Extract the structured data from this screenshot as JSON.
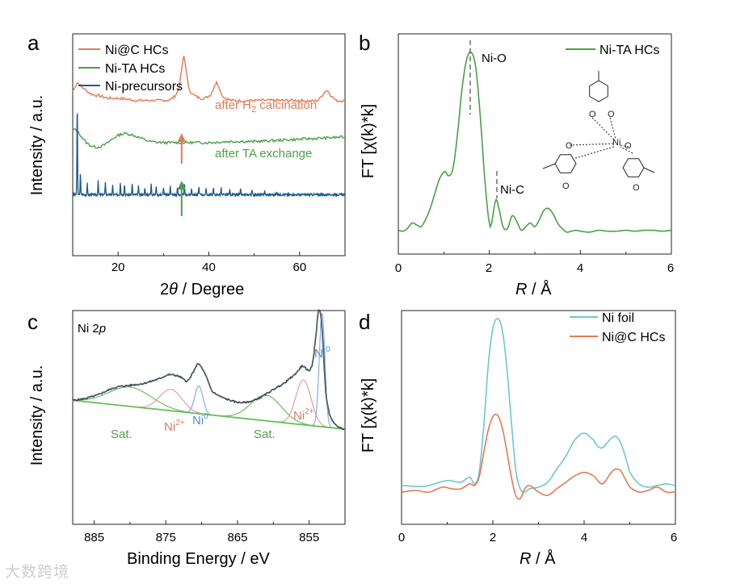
{
  "colors": {
    "nic": "#e07b55",
    "nita": "#4aa047",
    "nipre": "#1f5a8c",
    "foil": "#6cc7cf",
    "fit_black": "#222222",
    "fit_pink": "#e79aa0",
    "fit_blue": "#88aee0",
    "fit_green": "#6cbf5e",
    "sat_text": "#5a9a4a",
    "ni2_text": "#d97a66",
    "ni0_text": "#5b8fc9"
  },
  "chart_data": [
    {
      "panel": "a",
      "type": "line",
      "xlabel_pre": "2",
      "xlabel_theta": "θ",
      "xlabel_post": " / Degree",
      "ylabel": "Intensity / a.u.",
      "xlim": [
        10,
        70
      ],
      "xticks": [
        "20",
        "40",
        "60"
      ],
      "legend": [
        "Ni@C HCs",
        "Ni-TA HCs",
        "Ni-precursors"
      ],
      "annot_calc_pre": "after H",
      "annot_calc_sub": "2",
      "annot_calc_post": " calcination",
      "annot_ta": "after TA exchange",
      "series": [
        {
          "name": "Ni@C HCs",
          "x": [
            10,
            11,
            12,
            14,
            16,
            18,
            20,
            22,
            24,
            26,
            28,
            30,
            32,
            33.5,
            34.5,
            35.5,
            37,
            39,
            40.5,
            41.7,
            43,
            45,
            50,
            55,
            60,
            64,
            66,
            67,
            68,
            70
          ],
          "y": [
            0.74,
            0.78,
            0.76,
            0.73,
            0.72,
            0.71,
            0.71,
            0.705,
            0.7,
            0.7,
            0.7,
            0.7,
            0.71,
            0.76,
            0.9,
            0.76,
            0.72,
            0.71,
            0.73,
            0.78,
            0.72,
            0.7,
            0.7,
            0.7,
            0.7,
            0.7,
            0.745,
            0.72,
            0.7,
            0.7
          ]
        },
        {
          "name": "Ni-TA HCs",
          "x": [
            10,
            11,
            13,
            15,
            17,
            19,
            21,
            23,
            25,
            27,
            30,
            33,
            36,
            40,
            45,
            50,
            55,
            60,
            65,
            70
          ],
          "y": [
            0.57,
            0.56,
            0.51,
            0.49,
            0.5,
            0.53,
            0.55,
            0.545,
            0.53,
            0.515,
            0.51,
            0.51,
            0.51,
            0.51,
            0.515,
            0.515,
            0.52,
            0.525,
            0.53,
            0.535
          ]
        },
        {
          "name": "Ni-precursors",
          "peaks": [
            [
              11.0,
              0.44
            ],
            [
              11.7,
              0.1
            ],
            [
              13.2,
              0.05
            ],
            [
              15.6,
              0.07
            ],
            [
              17.2,
              0.06
            ],
            [
              18.8,
              0.045
            ],
            [
              20.5,
              0.06
            ],
            [
              21.4,
              0.05
            ],
            [
              23.1,
              0.05
            ],
            [
              24.5,
              0.04
            ],
            [
              25.9,
              0.035
            ],
            [
              27.3,
              0.055
            ],
            [
              28.4,
              0.04
            ],
            [
              30.0,
              0.035
            ],
            [
              31.5,
              0.045
            ],
            [
              33.1,
              0.035
            ],
            [
              34.6,
              0.05
            ],
            [
              36.2,
              0.03
            ],
            [
              37.8,
              0.04
            ],
            [
              39.4,
              0.03
            ],
            [
              41.0,
              0.035
            ],
            [
              42.7,
              0.03
            ],
            [
              44.6,
              0.025
            ],
            [
              47.0,
              0.025
            ],
            [
              49.5,
              0.02
            ],
            [
              52.3,
              0.02
            ],
            [
              55.0,
              0.015
            ]
          ],
          "baseline": 0.275
        }
      ]
    },
    {
      "panel": "b",
      "type": "line",
      "xlabel_r": "R",
      "xlabel_rest": " / Å",
      "ylabel": "FT [χ(k)*k]",
      "xlim": [
        0,
        6
      ],
      "xticks": [
        "0",
        "2",
        "4",
        "6"
      ],
      "legend": [
        "Ni-TA HCs"
      ],
      "annotations": [
        "Ni-O",
        "Ni-C"
      ],
      "mol_labels": [
        "O",
        "O",
        "O",
        "O",
        "O",
        "O",
        "Ni"
      ],
      "series": [
        {
          "name": "Ni-TA HCs",
          "x": [
            0,
            0.1,
            0.2,
            0.3,
            0.4,
            0.5,
            0.6,
            0.7,
            0.8,
            0.9,
            1.0,
            1.05,
            1.1,
            1.2,
            1.3,
            1.4,
            1.5,
            1.6,
            1.7,
            1.8,
            1.9,
            2.0,
            2.05,
            2.1,
            2.15,
            2.2,
            2.3,
            2.4,
            2.5,
            2.6,
            2.7,
            2.8,
            2.9,
            3.0,
            3.1,
            3.2,
            3.3,
            3.4,
            3.5,
            3.6,
            3.7,
            3.8,
            3.9,
            4.0,
            4.2,
            4.4,
            4.6,
            4.8,
            5.0,
            5.2,
            5.4,
            5.6,
            5.8,
            6.0
          ],
          "y": [
            0.02,
            0.015,
            0.03,
            0.06,
            0.05,
            0.04,
            0.08,
            0.14,
            0.22,
            0.3,
            0.34,
            0.34,
            0.32,
            0.36,
            0.55,
            0.8,
            0.96,
            1.0,
            0.92,
            0.65,
            0.3,
            0.06,
            0.06,
            0.14,
            0.19,
            0.15,
            0.04,
            0.03,
            0.1,
            0.07,
            0.02,
            0.04,
            0.06,
            0.04,
            0.08,
            0.13,
            0.14,
            0.11,
            0.06,
            0.03,
            0.01,
            0.015,
            0.02,
            0.015,
            0.01,
            0.02,
            0.015,
            0.015,
            0.02,
            0.015,
            0.02,
            0.02,
            0.015,
            0.02
          ]
        }
      ]
    },
    {
      "panel": "c",
      "type": "line",
      "title_pre": "Ni 2",
      "title_it": "p",
      "xlabel": "Binding Energy / eV",
      "ylabel": "Intensity / a.u.",
      "xlim": [
        888,
        850
      ],
      "xticks": [
        "885",
        "875",
        "865",
        "855"
      ],
      "peak_labels": {
        "sat": "Sat.",
        "ni": "Ni",
        "two_plus": "2+",
        "zero": "0"
      },
      "series": [
        {
          "name": "measured",
          "color": "fit_black",
          "x": [
            888,
            885,
            882,
            880,
            878,
            876,
            874.5,
            873,
            872,
            871.2,
            870.5,
            869.5,
            868.5,
            866,
            864,
            862,
            860,
            858.5,
            857,
            856.5,
            856,
            855.5,
            855,
            854.5,
            854,
            853.7,
            853.3,
            853,
            852.7,
            852.2,
            851.5,
            850.5,
            850
          ],
          "y": [
            0.58,
            0.6,
            0.64,
            0.65,
            0.66,
            0.68,
            0.7,
            0.69,
            0.67,
            0.71,
            0.75,
            0.7,
            0.62,
            0.58,
            0.57,
            0.59,
            0.63,
            0.66,
            0.7,
            0.72,
            0.74,
            0.73,
            0.72,
            0.76,
            0.9,
            1.0,
            0.96,
            0.8,
            0.62,
            0.52,
            0.47,
            0.45,
            0.445
          ]
        },
        {
          "name": "Sat. 1",
          "color": "fit_green",
          "center": 880.0,
          "height": 0.09,
          "width": 4.2
        },
        {
          "name": "Ni2+ 1",
          "color": "fit_pink",
          "center": 874.3,
          "height": 0.1,
          "width": 2.2
        },
        {
          "name": "Ni0 1",
          "color": "fit_blue",
          "center": 870.4,
          "height": 0.13,
          "width": 0.8
        },
        {
          "name": "Sat. 2",
          "color": "fit_green",
          "center": 861.0,
          "height": 0.12,
          "width": 3.0
        },
        {
          "name": "Ni2+ 2",
          "color": "fit_pink",
          "center": 855.8,
          "height": 0.21,
          "width": 1.5
        },
        {
          "name": "Ni0 2",
          "color": "fit_blue",
          "center": 853.2,
          "height": 0.53,
          "width": 0.55
        }
      ]
    },
    {
      "panel": "d",
      "type": "line",
      "xlabel_r": "R",
      "xlabel_rest": " / Å",
      "ylabel": "FT [χ(k)*k]",
      "xlim": [
        0,
        6
      ],
      "xticks": [
        "0",
        "2",
        "4",
        "6"
      ],
      "legend": [
        "Ni foil",
        "Ni@C HCs"
      ],
      "series": [
        {
          "name": "Ni foil",
          "x": [
            0,
            0.5,
            1.0,
            1.3,
            1.5,
            1.6,
            1.7,
            1.8,
            1.9,
            2.0,
            2.1,
            2.2,
            2.3,
            2.4,
            2.5,
            2.6,
            2.7,
            2.8,
            3.0,
            3.2,
            3.4,
            3.6,
            3.8,
            4.0,
            4.2,
            4.3,
            4.4,
            4.5,
            4.6,
            4.7,
            4.8,
            4.9,
            5.0,
            5.2,
            5.4,
            5.6,
            5.8,
            6.0
          ],
          "y": [
            0.04,
            0.035,
            0.07,
            0.06,
            0.09,
            0.05,
            0.12,
            0.4,
            0.78,
            1.0,
            1.06,
            1.0,
            0.78,
            0.45,
            0.14,
            0.02,
            0.0,
            0.02,
            0.03,
            0.06,
            0.14,
            0.22,
            0.32,
            0.36,
            0.32,
            0.28,
            0.27,
            0.3,
            0.33,
            0.34,
            0.3,
            0.22,
            0.12,
            0.05,
            0.03,
            0.04,
            0.05,
            0.04
          ]
        },
        {
          "name": "Ni@C HCs",
          "x": [
            0,
            0.3,
            0.6,
            0.9,
            1.1,
            1.3,
            1.5,
            1.6,
            1.7,
            1.8,
            1.9,
            2.0,
            2.1,
            2.2,
            2.3,
            2.4,
            2.5,
            2.6,
            2.7,
            2.8,
            3.0,
            3.2,
            3.4,
            3.6,
            3.8,
            4.0,
            4.2,
            4.4,
            4.6,
            4.7,
            4.8,
            4.9,
            5.0,
            5.2,
            5.4,
            5.6,
            5.8,
            6.0
          ],
          "y": [
            0.0,
            0.01,
            0.0,
            0.03,
            0.02,
            0.02,
            0.05,
            0.04,
            0.09,
            0.24,
            0.38,
            0.46,
            0.47,
            0.4,
            0.26,
            0.1,
            -0.02,
            -0.04,
            0.02,
            0.04,
            0.0,
            -0.02,
            0.02,
            0.06,
            0.1,
            0.12,
            0.1,
            0.05,
            0.12,
            0.14,
            0.13,
            0.08,
            0.03,
            0.0,
            0.01,
            0.03,
            0.0,
            0.0
          ]
        }
      ]
    }
  ],
  "panel_letters": [
    "a",
    "b",
    "c",
    "d"
  ],
  "watermark": "大数跨境"
}
